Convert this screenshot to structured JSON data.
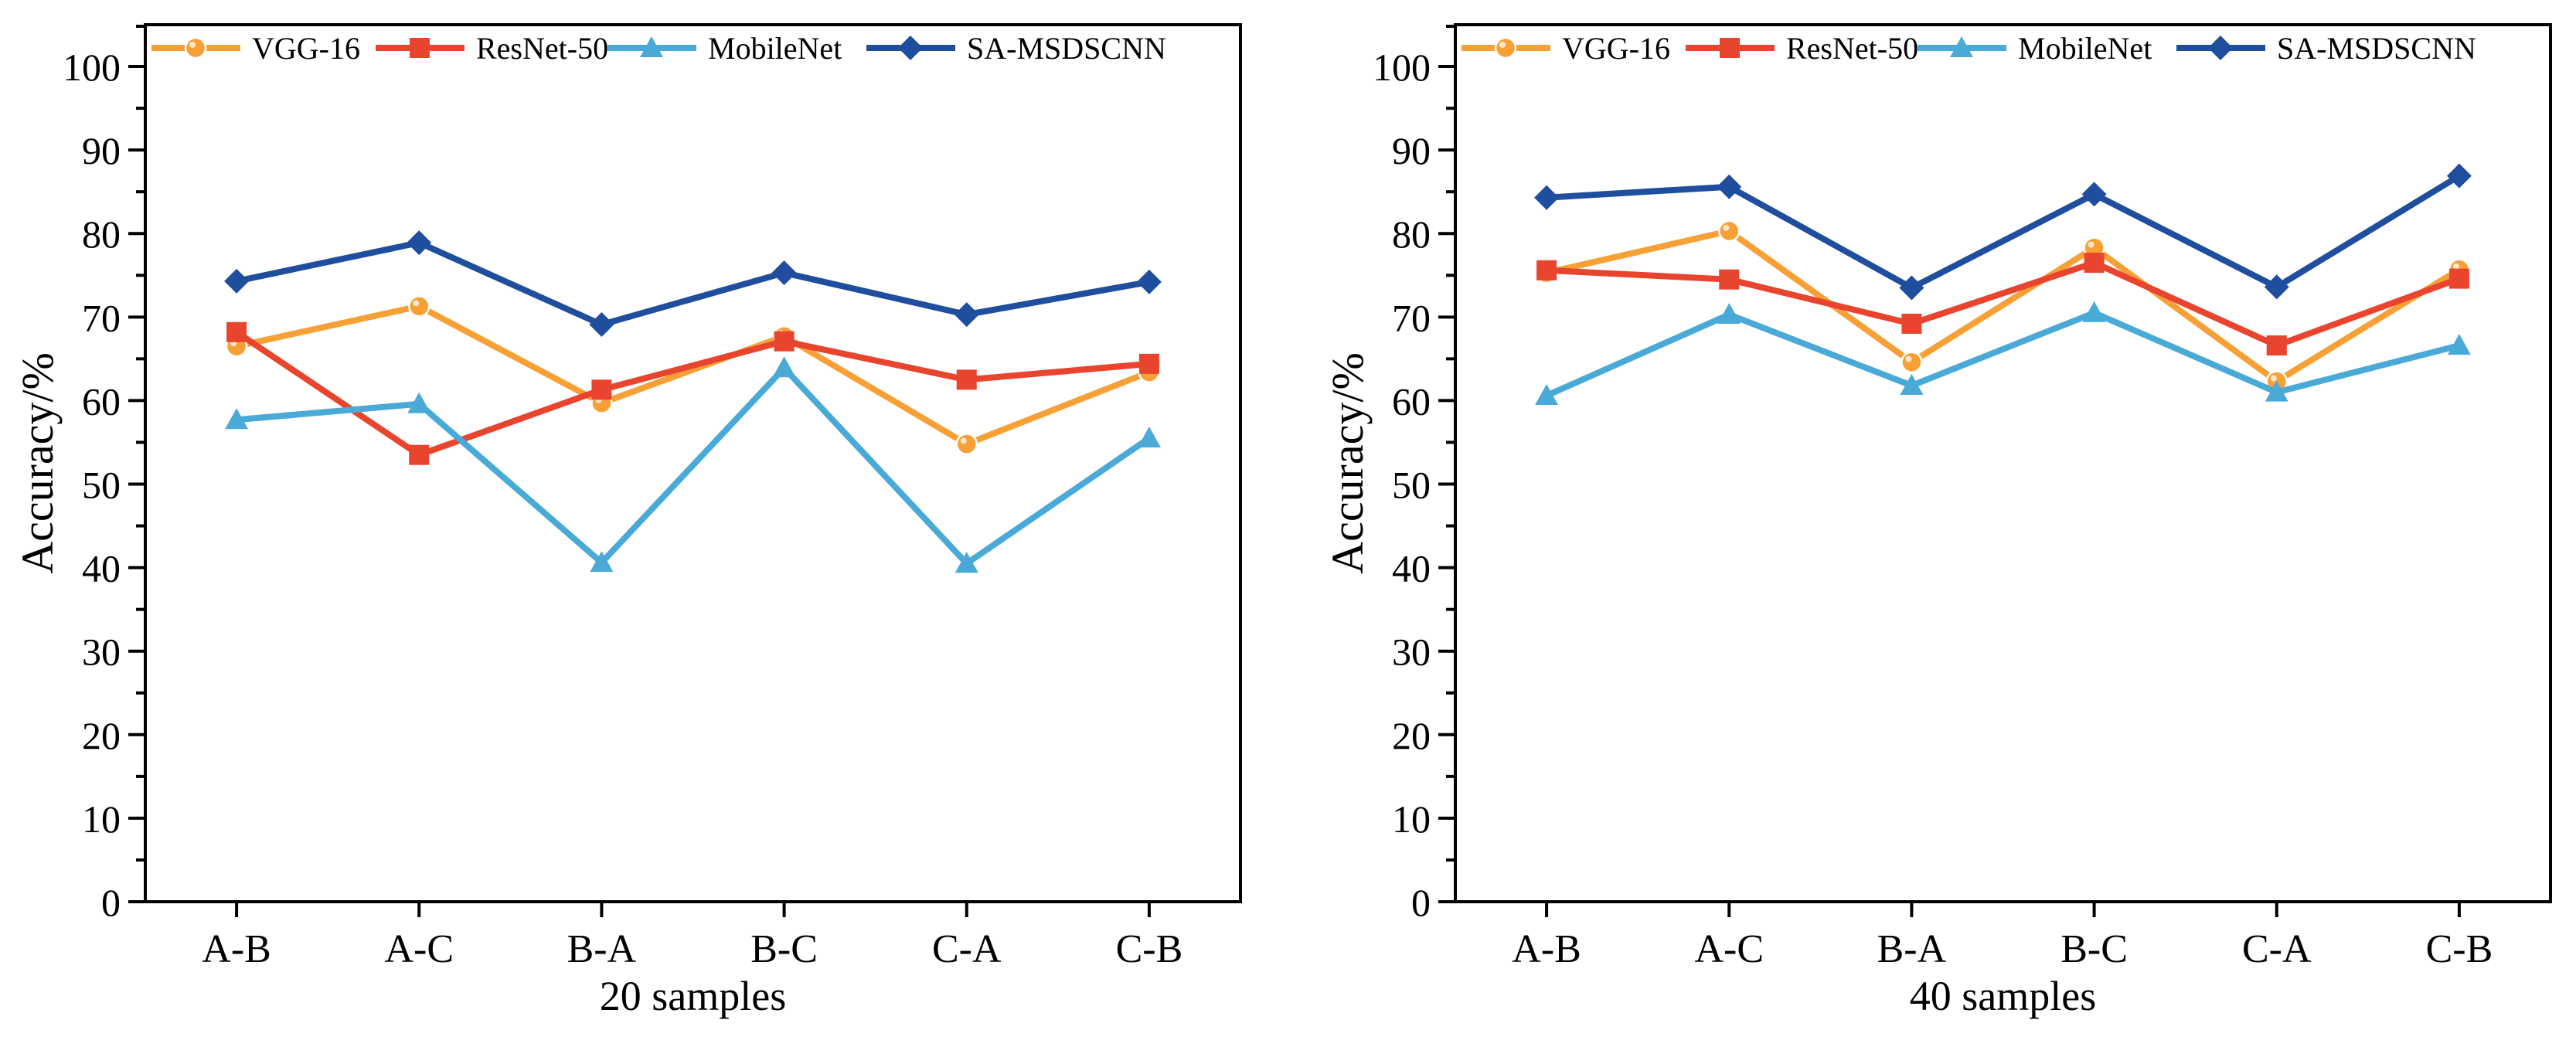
{
  "chart_data": [
    {
      "type": "line",
      "title": "",
      "xlabel": "20 samples",
      "ylabel": "Accuracy/%",
      "categories": [
        "A-B",
        "A-C",
        "B-A",
        "B-C",
        "C-A",
        "C-B"
      ],
      "ylim": [
        0,
        105
      ],
      "yticks": [
        0,
        10,
        20,
        30,
        40,
        50,
        60,
        70,
        80,
        90,
        100
      ],
      "grid": false,
      "legend_position": "top",
      "series": [
        {
          "name": "VGG-16",
          "color": "#F7A035",
          "marker": "circle",
          "values": [
            66.5,
            71.3,
            59.7,
            67.7,
            54.8,
            63.4
          ]
        },
        {
          "name": "ResNet-50",
          "color": "#E8442E",
          "marker": "square",
          "values": [
            68.2,
            53.5,
            61.3,
            67.1,
            62.5,
            64.4
          ]
        },
        {
          "name": "MobileNet",
          "color": "#4AAAD7",
          "marker": "triangle",
          "values": [
            57.7,
            59.6,
            40.6,
            63.9,
            40.5,
            55.5
          ]
        },
        {
          "name": "SA-MSDSCNN",
          "color": "#1F4E9E",
          "marker": "diamond",
          "values": [
            74.3,
            78.9,
            69.1,
            75.3,
            70.3,
            74.2
          ]
        }
      ]
    },
    {
      "type": "line",
      "title": "",
      "xlabel": "40 samples",
      "ylabel": "Accuracy/%",
      "categories": [
        "A-B",
        "A-C",
        "B-A",
        "B-C",
        "C-A",
        "C-B"
      ],
      "ylim": [
        0,
        105
      ],
      "yticks": [
        0,
        10,
        20,
        30,
        40,
        50,
        60,
        70,
        80,
        90,
        100
      ],
      "grid": false,
      "legend_position": "top",
      "series": [
        {
          "name": "VGG-16",
          "color": "#F7A035",
          "marker": "circle",
          "values": [
            75.3,
            80.3,
            64.6,
            78.3,
            62.3,
            75.7
          ]
        },
        {
          "name": "ResNet-50",
          "color": "#E8442E",
          "marker": "square",
          "values": [
            75.6,
            74.5,
            69.2,
            76.5,
            66.6,
            74.6
          ]
        },
        {
          "name": "MobileNet",
          "color": "#4AAAD7",
          "marker": "triangle",
          "values": [
            60.6,
            70.3,
            61.8,
            70.5,
            61.0,
            66.6
          ]
        },
        {
          "name": "SA-MSDSCNN",
          "color": "#1F4E9E",
          "marker": "diamond",
          "values": [
            84.3,
            85.6,
            73.5,
            84.7,
            73.6,
            86.9
          ]
        }
      ]
    }
  ]
}
